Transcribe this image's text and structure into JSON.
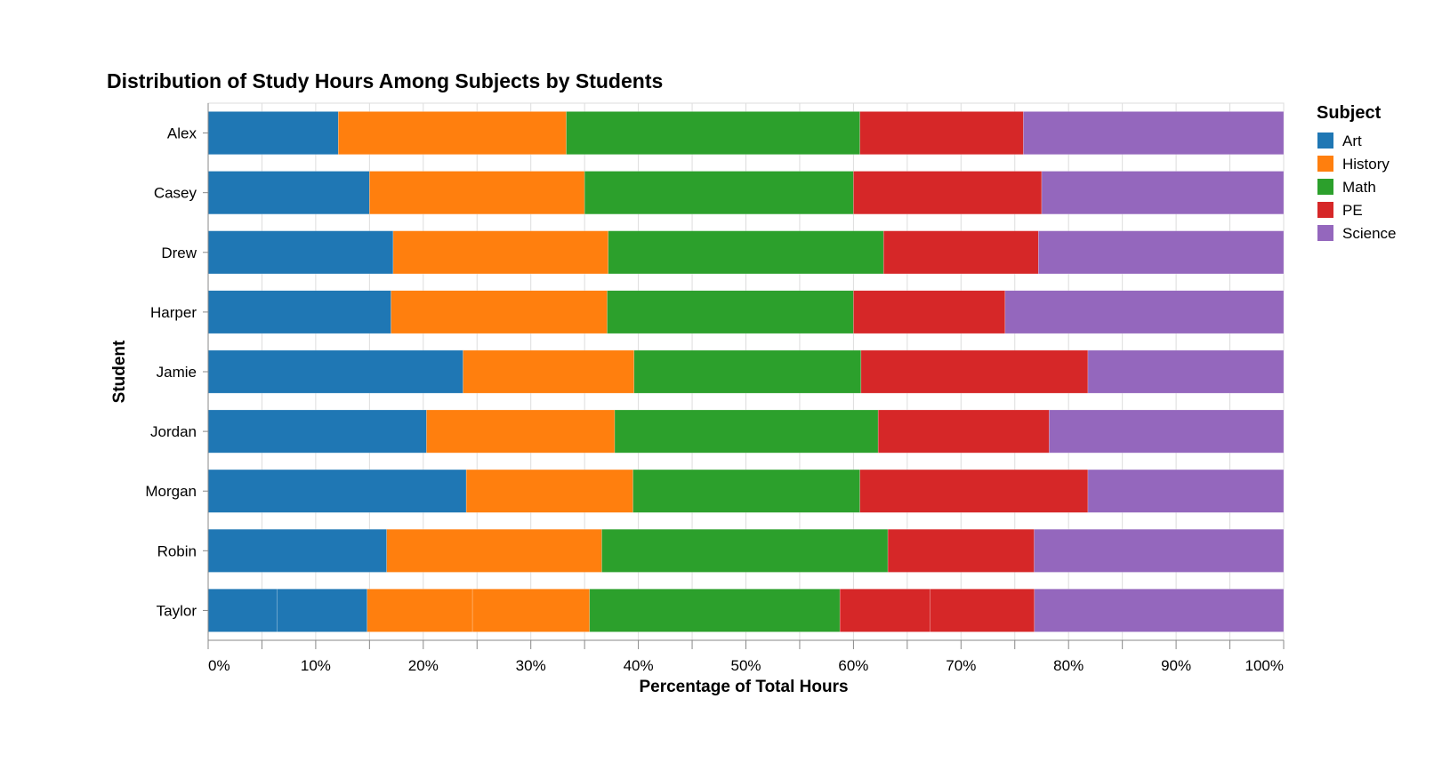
{
  "chart_data": {
    "type": "bar",
    "orientation": "horizontal",
    "stacked": "normalize",
    "title": "Distribution of Study Hours Among Subjects by Students",
    "xlabel": "Percentage of Total Hours",
    "ylabel": "Student",
    "xlim": [
      0,
      1
    ],
    "x_ticks": [
      "0%",
      "10%",
      "20%",
      "30%",
      "40%",
      "50%",
      "60%",
      "70%",
      "80%",
      "90%",
      "100%"
    ],
    "grid": true,
    "legend": {
      "title": "Subject",
      "position": "right"
    },
    "categories": [
      "Alex",
      "Casey",
      "Drew",
      "Harper",
      "Jamie",
      "Jordan",
      "Morgan",
      "Robin",
      "Taylor"
    ],
    "series": [
      {
        "name": "Art",
        "color": "#1f77b4",
        "segments": [
          [
            0.121
          ],
          [
            0.15
          ],
          [
            0.172
          ],
          [
            0.17
          ],
          [
            0.237
          ],
          [
            0.203
          ],
          [
            0.24
          ],
          [
            0.166
          ],
          [
            0.064,
            0.084
          ]
        ]
      },
      {
        "name": "History",
        "color": "#ff7f0e",
        "segments": [
          [
            0.212
          ],
          [
            0.2
          ],
          [
            0.2
          ],
          [
            0.201
          ],
          [
            0.159
          ],
          [
            0.175
          ],
          [
            0.155
          ],
          [
            0.2
          ],
          [
            0.098,
            0.109
          ]
        ]
      },
      {
        "name": "Math",
        "color": "#2ca02c",
        "segments": [
          [
            0.273
          ],
          [
            0.25
          ],
          [
            0.256
          ],
          [
            0.229
          ],
          [
            0.211
          ],
          [
            0.245
          ],
          [
            0.211
          ],
          [
            0.266
          ],
          [
            0.233
          ]
        ]
      },
      {
        "name": "PE",
        "color": "#d62728",
        "segments": [
          [
            0.152
          ],
          [
            0.175
          ],
          [
            0.144
          ],
          [
            0.141
          ],
          [
            0.211
          ],
          [
            0.159
          ],
          [
            0.212
          ],
          [
            0.136
          ],
          [
            0.084,
            0.097
          ]
        ]
      },
      {
        "name": "Science",
        "color": "#9467bd",
        "segments": [
          [
            0.242
          ],
          [
            0.225
          ],
          [
            0.228
          ],
          [
            0.259
          ],
          [
            0.182
          ],
          [
            0.218
          ],
          [
            0.182
          ],
          [
            0.232
          ],
          [
            0.232
          ]
        ]
      }
    ]
  }
}
